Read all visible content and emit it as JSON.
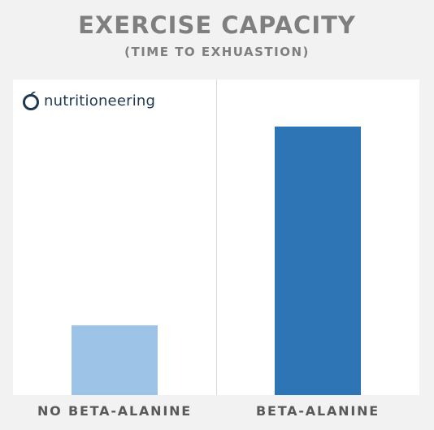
{
  "logo": {
    "text": "nutritioneering"
  },
  "chart_data": {
    "type": "bar",
    "title": "EXERCISE CAPACITY",
    "subtitle": "(TIME TO EXHUASTION)",
    "categories": [
      "NO BETA-ALANINE",
      "BETA-ALANINE"
    ],
    "values": [
      22,
      85
    ],
    "ylim": [
      0,
      100
    ],
    "colors": [
      "#9dc3e6",
      "#2e75b6"
    ],
    "grid": false,
    "legend": "none"
  }
}
